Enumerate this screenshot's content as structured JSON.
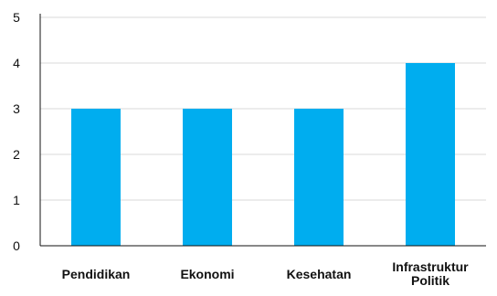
{
  "chart_data": {
    "type": "bar",
    "categories": [
      "Pendidikan",
      "Ekonomi",
      "Kesehatan",
      "Infrastruktur Politik"
    ],
    "category_lines": [
      [
        "Pendidikan"
      ],
      [
        "Ekonomi"
      ],
      [
        "Kesehatan"
      ],
      [
        "Infrastruktur",
        "Politik"
      ]
    ],
    "values": [
      3,
      3,
      3,
      4
    ],
    "ylim": [
      0,
      5
    ],
    "yticks": [
      0,
      1,
      2,
      3,
      4,
      5
    ],
    "grid": true,
    "legend": "none",
    "title": "",
    "xlabel": "",
    "ylabel": "",
    "colors": {
      "bar": "#00ADEF",
      "grid": "#D9D9D9",
      "axis": "#111111"
    }
  }
}
